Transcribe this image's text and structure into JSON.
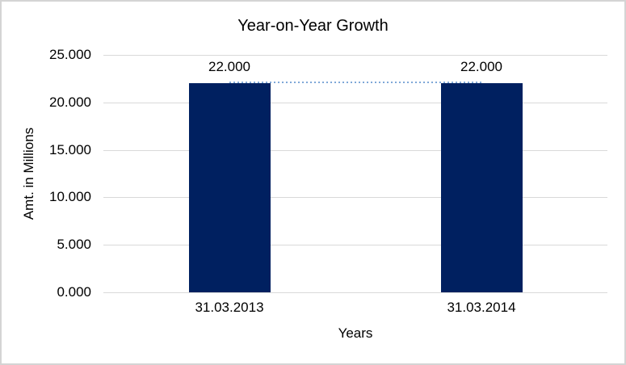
{
  "frame": {
    "border_color": "#d4d4d4",
    "background": "#ffffff"
  },
  "chart_data": {
    "type": "bar",
    "title": "Year-on-Year Growth",
    "xlabel": "Years",
    "ylabel": "Amt. in Millions",
    "categories": [
      "31.03.2013",
      "31.03.2014"
    ],
    "values": [
      22,
      22
    ],
    "value_labels": [
      "22.000",
      "22.000"
    ],
    "ylim": [
      0,
      25
    ],
    "ytick_step": 5,
    "ytick_labels": [
      "0.000",
      "5.000",
      "10.000",
      "15.000",
      "20.000",
      "25.000"
    ],
    "grid": true,
    "legend": "none",
    "colors": {
      "bar": "#002060",
      "gridline": "#d9d9d9",
      "axis_line": "#d9d9d9",
      "text": "#000000",
      "connector_dots": "#7fa8d8"
    },
    "connector": {
      "style": "dotted",
      "at_value": 22,
      "from_category": "31.03.2013",
      "to_category": "31.03.2014"
    }
  }
}
